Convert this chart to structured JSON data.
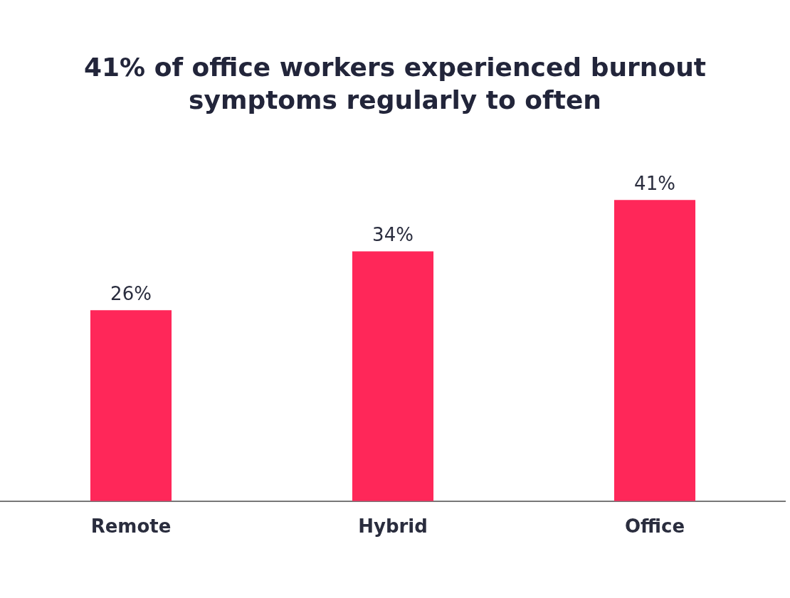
{
  "chart_data": {
    "type": "bar",
    "title": "41% of office workers experienced burnout symptoms regularly to often",
    "categories": [
      "Remote",
      "Hybrid",
      "Office"
    ],
    "values": [
      26,
      34,
      41
    ],
    "color": "#ff2759",
    "data_labels": true,
    "value_labels": [
      "26%",
      "34%",
      "41%"
    ],
    "grid": false,
    "legend": false,
    "tick_labels": "x"
  }
}
